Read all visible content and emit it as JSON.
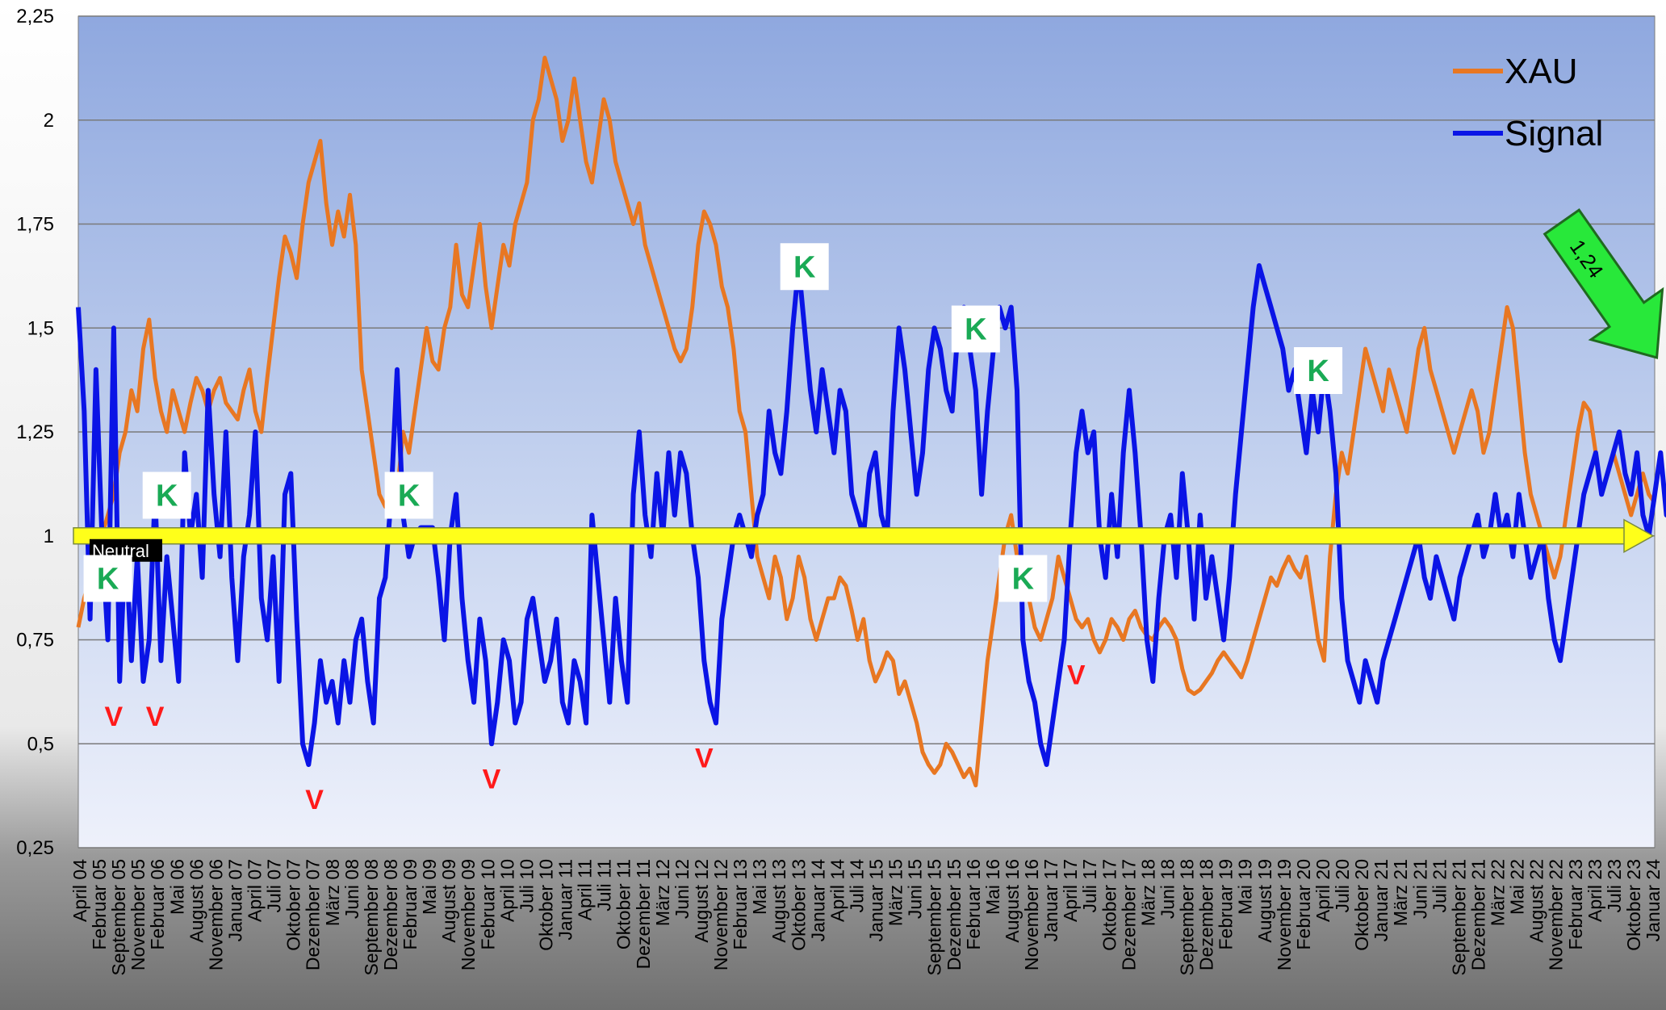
{
  "chart_data": {
    "type": "line",
    "title": "",
    "xlabel": "",
    "ylabel": "",
    "ylim": [
      0.25,
      2.25
    ],
    "y_ticks": [
      "0,25",
      "0,5",
      "0,75",
      "1",
      "1,25",
      "1,5",
      "1,75",
      "2",
      "2,25"
    ],
    "grid": "horizontal",
    "legend_position": "top-right",
    "x_tick_labels": [
      "April 04",
      "Februar 05",
      "September 05",
      "November 05",
      "Februar 06",
      "Mai 06",
      "August 06",
      "November 06",
      "Januar 07",
      "April 07",
      "Juli 07",
      "Oktober 07",
      "Dezember 07",
      "März 08",
      "Juni 08",
      "September 08",
      "Dezember 08",
      "Februar 09",
      "Mai 09",
      "August 09",
      "November 09",
      "Februar 10",
      "April 10",
      "Juli 10",
      "Oktober 10",
      "Januar 11",
      "April 11",
      "Juli 11",
      "Oktober 11",
      "Dezember 11",
      "März 12",
      "Juni 12",
      "August 12",
      "November 12",
      "Februar 13",
      "Mai 13",
      "August 13",
      "Oktober 13",
      "Januar 14",
      "April 14",
      "Juli 14",
      "Januar 15",
      "März 15",
      "Juni 15",
      "September 15",
      "Dezember 15",
      "Februar 16",
      "Mai 16",
      "August 16",
      "November 16",
      "Januar 17",
      "April 17",
      "Juli 17",
      "Oktober 17",
      "Dezember 17",
      "März 18",
      "Juni 18",
      "September 18",
      "Dezember 18",
      "Februar 19",
      "Mai 19",
      "August 19",
      "November 19",
      "Februar 20",
      "April 20",
      "Juli 20",
      "Oktober 20",
      "Januar 21",
      "März 21",
      "Juni 21",
      "Juli 21",
      "September 21",
      "Dezember 21",
      "März 22",
      "Mai 22",
      "August 22",
      "November 22",
      "Februar 23",
      "April 23",
      "Juli 23",
      "Oktober 23",
      "Januar 24"
    ],
    "series": [
      {
        "name": "XAU",
        "color": "#e87722",
        "values": [
          0.78,
          0.85,
          0.9,
          0.92,
          1.0,
          1.05,
          1.1,
          1.2,
          1.25,
          1.35,
          1.3,
          1.45,
          1.52,
          1.38,
          1.3,
          1.25,
          1.35,
          1.3,
          1.25,
          1.32,
          1.38,
          1.35,
          1.3,
          1.35,
          1.38,
          1.32,
          1.3,
          1.28,
          1.35,
          1.4,
          1.3,
          1.25,
          1.38,
          1.5,
          1.62,
          1.72,
          1.68,
          1.62,
          1.75,
          1.85,
          1.9,
          1.95,
          1.8,
          1.7,
          1.78,
          1.72,
          1.82,
          1.7,
          1.4,
          1.3,
          1.2,
          1.1,
          1.07,
          1.07,
          1.1,
          1.25,
          1.2,
          1.3,
          1.4,
          1.5,
          1.42,
          1.4,
          1.5,
          1.55,
          1.7,
          1.58,
          1.55,
          1.65,
          1.75,
          1.6,
          1.5,
          1.6,
          1.7,
          1.65,
          1.75,
          1.8,
          1.85,
          2.0,
          2.05,
          2.15,
          2.1,
          2.05,
          1.95,
          2.0,
          2.1,
          2.0,
          1.9,
          1.85,
          1.95,
          2.05,
          2.0,
          1.9,
          1.85,
          1.8,
          1.75,
          1.8,
          1.7,
          1.65,
          1.6,
          1.55,
          1.5,
          1.45,
          1.42,
          1.45,
          1.55,
          1.7,
          1.78,
          1.75,
          1.7,
          1.6,
          1.55,
          1.45,
          1.3,
          1.25,
          1.1,
          0.95,
          0.9,
          0.85,
          0.95,
          0.9,
          0.8,
          0.85,
          0.95,
          0.9,
          0.8,
          0.75,
          0.8,
          0.85,
          0.85,
          0.9,
          0.88,
          0.82,
          0.75,
          0.8,
          0.7,
          0.65,
          0.68,
          0.72,
          0.7,
          0.62,
          0.65,
          0.6,
          0.55,
          0.48,
          0.45,
          0.43,
          0.45,
          0.5,
          0.48,
          0.45,
          0.42,
          0.44,
          0.4,
          0.55,
          0.7,
          0.8,
          0.9,
          1.0,
          1.05,
          0.95,
          0.9,
          0.85,
          0.78,
          0.75,
          0.8,
          0.85,
          0.95,
          0.9,
          0.85,
          0.8,
          0.78,
          0.8,
          0.75,
          0.72,
          0.75,
          0.8,
          0.78,
          0.75,
          0.8,
          0.82,
          0.78,
          0.76,
          0.75,
          0.78,
          0.8,
          0.78,
          0.75,
          0.68,
          0.63,
          0.62,
          0.63,
          0.65,
          0.67,
          0.7,
          0.72,
          0.7,
          0.68,
          0.66,
          0.7,
          0.75,
          0.8,
          0.85,
          0.9,
          0.88,
          0.92,
          0.95,
          0.92,
          0.9,
          0.95,
          0.85,
          0.75,
          0.7,
          0.95,
          1.1,
          1.2,
          1.15,
          1.25,
          1.35,
          1.45,
          1.4,
          1.35,
          1.3,
          1.4,
          1.35,
          1.3,
          1.25,
          1.35,
          1.45,
          1.5,
          1.4,
          1.35,
          1.3,
          1.25,
          1.2,
          1.25,
          1.3,
          1.35,
          1.3,
          1.2,
          1.25,
          1.35,
          1.45,
          1.55,
          1.5,
          1.35,
          1.2,
          1.1,
          1.05,
          1.0,
          0.95,
          0.9,
          0.95,
          1.05,
          1.15,
          1.25,
          1.32,
          1.3,
          1.2,
          1.1,
          1.15,
          1.2,
          1.15,
          1.1,
          1.05,
          1.1,
          1.15,
          1.1,
          1.08
        ]
      },
      {
        "name": "Signal",
        "color": "#0a14e6",
        "values": [
          1.55,
          1.3,
          0.8,
          1.4,
          1.0,
          0.75,
          1.5,
          0.65,
          1.0,
          0.7,
          0.95,
          0.65,
          0.75,
          1.1,
          0.7,
          0.95,
          0.8,
          0.65,
          1.2,
          1.0,
          1.1,
          0.9,
          1.35,
          1.1,
          0.95,
          1.25,
          0.9,
          0.7,
          0.95,
          1.05,
          1.25,
          0.85,
          0.75,
          0.95,
          0.65,
          1.1,
          1.15,
          0.8,
          0.5,
          0.45,
          0.55,
          0.7,
          0.6,
          0.65,
          0.55,
          0.7,
          0.6,
          0.75,
          0.8,
          0.65,
          0.55,
          0.85,
          0.9,
          1.1,
          1.4,
          1.05,
          0.95,
          1.0,
          1.02,
          1.02,
          1.02,
          0.9,
          0.75,
          1.0,
          1.1,
          0.85,
          0.7,
          0.6,
          0.8,
          0.7,
          0.5,
          0.6,
          0.75,
          0.7,
          0.55,
          0.6,
          0.8,
          0.85,
          0.75,
          0.65,
          0.7,
          0.8,
          0.6,
          0.55,
          0.7,
          0.65,
          0.55,
          1.05,
          0.9,
          0.75,
          0.6,
          0.85,
          0.7,
          0.6,
          1.1,
          1.25,
          1.05,
          0.95,
          1.15,
          1.0,
          1.2,
          1.05,
          1.2,
          1.15,
          1.0,
          0.9,
          0.7,
          0.6,
          0.55,
          0.8,
          0.9,
          1.0,
          1.05,
          1.0,
          0.95,
          1.05,
          1.1,
          1.3,
          1.2,
          1.15,
          1.3,
          1.5,
          1.65,
          1.5,
          1.35,
          1.25,
          1.4,
          1.3,
          1.2,
          1.35,
          1.3,
          1.1,
          1.05,
          1.0,
          1.15,
          1.2,
          1.05,
          1.0,
          1.3,
          1.5,
          1.4,
          1.25,
          1.1,
          1.2,
          1.4,
          1.5,
          1.45,
          1.35,
          1.3,
          1.5,
          1.55,
          1.45,
          1.35,
          1.1,
          1.3,
          1.45,
          1.55,
          1.5,
          1.55,
          1.35,
          0.75,
          0.65,
          0.6,
          0.5,
          0.45,
          0.55,
          0.65,
          0.75,
          1.0,
          1.2,
          1.3,
          1.2,
          1.25,
          1.0,
          0.9,
          1.1,
          0.95,
          1.2,
          1.35,
          1.2,
          1.0,
          0.75,
          0.65,
          0.85,
          1.0,
          1.05,
          0.9,
          1.15,
          1.0,
          0.8,
          1.05,
          0.85,
          0.95,
          0.85,
          0.75,
          0.9,
          1.1,
          1.25,
          1.4,
          1.55,
          1.65,
          1.6,
          1.55,
          1.5,
          1.45,
          1.35,
          1.4,
          1.3,
          1.2,
          1.35,
          1.25,
          1.4,
          1.3,
          1.15,
          0.85,
          0.7,
          0.65,
          0.6,
          0.7,
          0.65,
          0.6,
          0.7,
          0.75,
          0.8,
          0.85,
          0.9,
          0.95,
          1.0,
          0.9,
          0.85,
          0.95,
          0.9,
          0.85,
          0.8,
          0.9,
          0.95,
          1.0,
          1.05,
          0.95,
          1.0,
          1.1,
          1.0,
          1.05,
          0.95,
          1.1,
          1.0,
          0.9,
          0.95,
          1.0,
          0.85,
          0.75,
          0.7,
          0.8,
          0.9,
          1.0,
          1.1,
          1.15,
          1.2,
          1.1,
          1.15,
          1.2,
          1.25,
          1.15,
          1.1,
          1.2,
          1.05,
          1.0,
          1.1,
          1.2,
          1.05,
          1.15,
          1.1,
          1.05,
          1.25,
          1.15,
          1.1,
          1.2,
          1.24
        ]
      }
    ],
    "annotations": {
      "k_labels": [
        {
          "text": "K",
          "index": 5
        },
        {
          "text": "K",
          "index": 15
        },
        {
          "text": "K",
          "index": 56
        },
        {
          "text": "K",
          "index": 123
        },
        {
          "text": "K",
          "index": 152
        },
        {
          "text": "K",
          "index": 160
        },
        {
          "text": "K",
          "index": 210
        }
      ],
      "v_labels": [
        {
          "text": "V",
          "index": 6
        },
        {
          "text": "V",
          "index": 13
        },
        {
          "text": "V",
          "index": 40
        },
        {
          "text": "V",
          "index": 70
        },
        {
          "text": "V",
          "index": 106
        },
        {
          "text": "V",
          "index": 169
        }
      ],
      "neutral": {
        "text": "Neutral",
        "value": 1.0
      },
      "current_arrow": {
        "text": "1,24",
        "value": 1.24
      }
    }
  }
}
